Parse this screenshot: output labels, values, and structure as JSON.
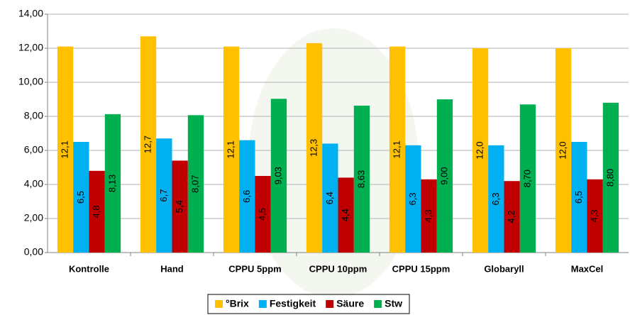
{
  "chart_data": {
    "type": "bar",
    "categories": [
      "Kontrolle",
      "Hand",
      "CPPU 5ppm",
      "CPPU 10ppm",
      "CPPU 15ppm",
      "Globaryll",
      "MaxCel"
    ],
    "series": [
      {
        "name": "°Brix",
        "color": "#ffc000",
        "values": [
          12.1,
          12.7,
          12.1,
          12.3,
          12.1,
          12.0,
          12.0
        ],
        "value_labels": [
          "12,1",
          "12,7",
          "12,1",
          "12,3",
          "12,1",
          "12,0",
          "12,0"
        ]
      },
      {
        "name": "Festigkeit",
        "color": "#00b0f0",
        "values": [
          6.5,
          6.7,
          6.6,
          6.4,
          6.3,
          6.3,
          6.5
        ],
        "value_labels": [
          "6,5",
          "6,7",
          "6,6",
          "6,4",
          "6,3",
          "6,3",
          "6,5"
        ]
      },
      {
        "name": "Säure",
        "color": "#c00000",
        "values": [
          4.8,
          5.4,
          4.5,
          4.4,
          4.3,
          4.2,
          4.3
        ],
        "value_labels": [
          "4,8",
          "5,4",
          "4,5",
          "4,4",
          "4,3",
          "4,2",
          "4,3"
        ]
      },
      {
        "name": "Stw",
        "color": "#00b050",
        "values": [
          8.13,
          8.07,
          9.03,
          8.63,
          9.0,
          8.7,
          8.8
        ],
        "value_labels": [
          "8,13",
          "8,07",
          "9,03",
          "8,63",
          "9,00",
          "8,70",
          "8,80"
        ]
      }
    ],
    "ylim": [
      0,
      14
    ],
    "yticks": [
      {
        "value": 0,
        "label": "0,00"
      },
      {
        "value": 2,
        "label": "2,00"
      },
      {
        "value": 4,
        "label": "4,00"
      },
      {
        "value": 6,
        "label": "6,00"
      },
      {
        "value": 8,
        "label": "8,00"
      },
      {
        "value": 10,
        "label": "10,00"
      },
      {
        "value": 12,
        "label": "12,00"
      },
      {
        "value": 14,
        "label": "14,00"
      }
    ],
    "grid": true,
    "legend": "bottom"
  }
}
